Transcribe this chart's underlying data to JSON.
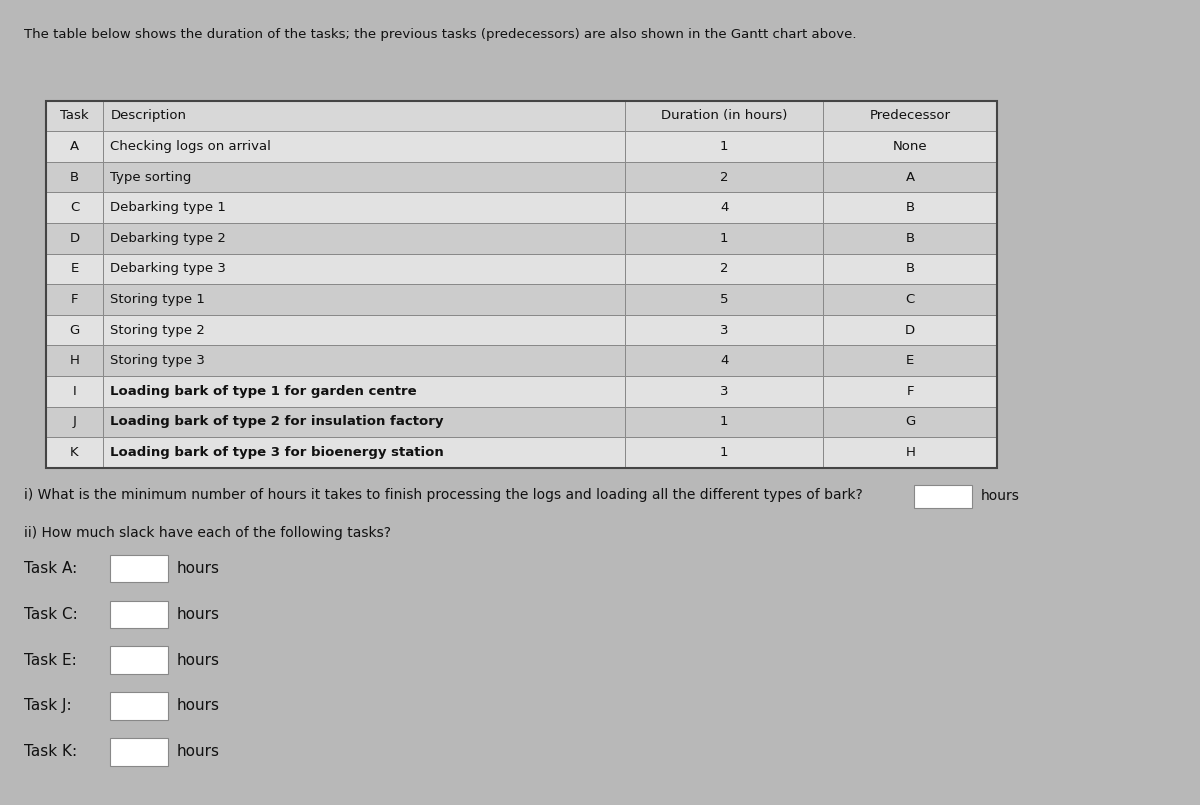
{
  "title": "The table below shows the duration of the tasks; the previous tasks (predecessors) are also shown in the Gantt chart above.",
  "table_headers": [
    "Task",
    "Description",
    "Duration (in hours)",
    "Predecessor"
  ],
  "table_rows": [
    [
      "A",
      "Checking logs on arrival",
      "1",
      "None"
    ],
    [
      "B",
      "Type sorting",
      "2",
      "A"
    ],
    [
      "C",
      "Debarking type 1",
      "4",
      "B"
    ],
    [
      "D",
      "Debarking type 2",
      "1",
      "B"
    ],
    [
      "E",
      "Debarking type 3",
      "2",
      "B"
    ],
    [
      "F",
      "Storing type 1",
      "5",
      "C"
    ],
    [
      "G",
      "Storing type 2",
      "3",
      "D"
    ],
    [
      "H",
      "Storing type 3",
      "4",
      "E"
    ],
    [
      "I",
      "Loading bark of type 1 for garden centre",
      "3",
      "F"
    ],
    [
      "J",
      "Loading bark of type 2 for insulation factory",
      "1",
      "G"
    ],
    [
      "K",
      "Loading bark of type 3 for bioenergy station",
      "1",
      "H"
    ]
  ],
  "question_i": "i) What is the minimum number of hours it takes to finish processing the logs and loading all the different types of bark?",
  "question_i_suffix": "hours",
  "question_ii": "ii) How much slack have each of the following tasks?",
  "slack_tasks": [
    "Task A:",
    "Task C:",
    "Task E:",
    "Task J:",
    "Task K:"
  ],
  "slack_suffix": "hours",
  "bg_color": "#b8b8b8",
  "cell_bg_light": "#e2e2e2",
  "cell_bg_dark": "#cccccc",
  "header_bg": "#d8d8d8",
  "input_box_color": "#ffffff",
  "text_color": "#111111",
  "border_color": "#888888",
  "font_size_title": 9.5,
  "font_size_table": 9.5,
  "font_size_question": 10,
  "font_size_slack": 11
}
